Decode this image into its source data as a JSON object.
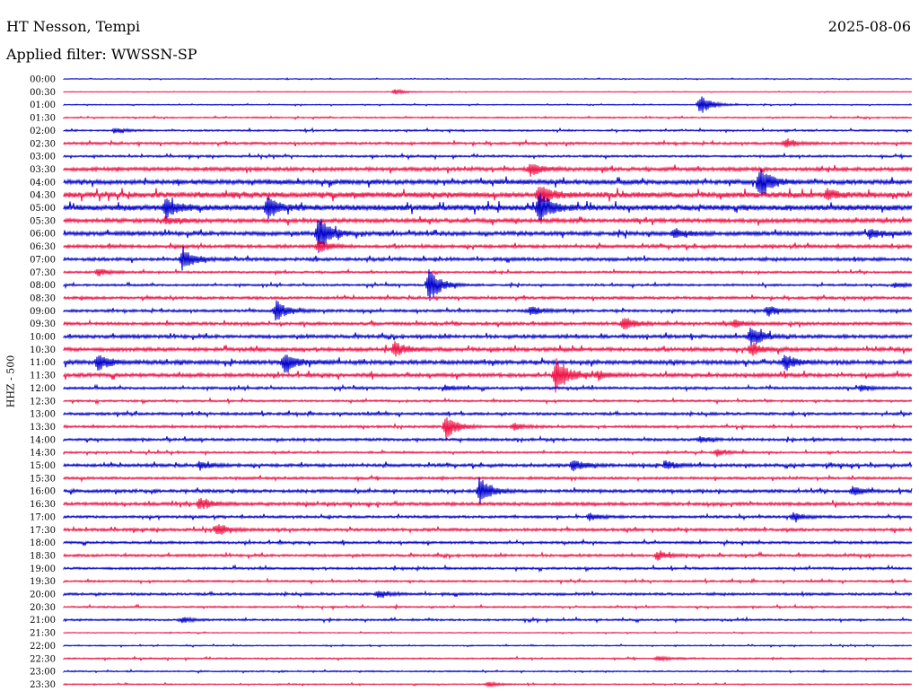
{
  "header": {
    "station": "HT Nesson, Tempi",
    "date": "2025-08-06",
    "filter": "Applied filter: WWSSN-SP"
  },
  "chart_data": {
    "type": "line",
    "title": "HT Nesson, Tempi",
    "ylabel": "HHZ - 500",
    "colors": [
      "#0000cc",
      "#ee1144"
    ],
    "tick_labels": [
      "00:00",
      "00:30",
      "01:00",
      "01:30",
      "02:00",
      "02:30",
      "03:00",
      "03:30",
      "04:00",
      "04:30",
      "05:00",
      "05:30",
      "06:00",
      "06:30",
      "07:00",
      "07:30",
      "08:00",
      "08:30",
      "09:00",
      "09:30",
      "10:00",
      "10:30",
      "11:00",
      "11:30",
      "12:00",
      "12:30",
      "13:00",
      "13:30",
      "14:00",
      "14:30",
      "15:00",
      "15:30",
      "16:00",
      "16:30",
      "17:00",
      "17:30",
      "18:00",
      "18:30",
      "19:00",
      "19:30",
      "20:00",
      "20:30",
      "21:00",
      "21:30",
      "22:00",
      "22:30",
      "23:00",
      "23:30"
    ],
    "row_noise": [
      0.4,
      0.3,
      0.5,
      0.7,
      0.9,
      1.3,
      1.1,
      2.0,
      2.4,
      3.0,
      3.0,
      2.2,
      2.2,
      1.7,
      1.7,
      1.1,
      1.1,
      1.4,
      1.4,
      1.6,
      1.8,
      2.0,
      2.2,
      2.0,
      1.3,
      1.1,
      1.4,
      1.3,
      1.4,
      1.0,
      1.6,
      1.3,
      1.6,
      1.7,
      1.3,
      1.5,
      1.3,
      1.3,
      1.2,
      1.0,
      1.3,
      0.9,
      1.0,
      0.5,
      0.6,
      0.8,
      0.7,
      0.6
    ],
    "events": [
      {
        "row": 1,
        "x": 0.39,
        "amp": 3
      },
      {
        "row": 2,
        "x": 0.75,
        "amp": 12
      },
      {
        "row": 4,
        "x": 0.06,
        "amp": 3
      },
      {
        "row": 5,
        "x": 0.85,
        "amp": 5
      },
      {
        "row": 7,
        "x": 0.55,
        "amp": 8
      },
      {
        "row": 8,
        "x": 0.82,
        "amp": 20
      },
      {
        "row": 9,
        "x": 0.56,
        "amp": 12
      },
      {
        "row": 9,
        "x": 0.9,
        "amp": 6
      },
      {
        "row": 10,
        "x": 0.12,
        "amp": 12
      },
      {
        "row": 10,
        "x": 0.24,
        "amp": 14
      },
      {
        "row": 10,
        "x": 0.56,
        "amp": 20
      },
      {
        "row": 11,
        "x": 0.12,
        "amp": 4
      },
      {
        "row": 12,
        "x": 0.3,
        "amp": 22
      },
      {
        "row": 12,
        "x": 0.72,
        "amp": 5
      },
      {
        "row": 12,
        "x": 0.95,
        "amp": 5
      },
      {
        "row": 13,
        "x": 0.3,
        "amp": 8
      },
      {
        "row": 14,
        "x": 0.14,
        "amp": 14
      },
      {
        "row": 15,
        "x": 0.04,
        "amp": 5
      },
      {
        "row": 16,
        "x": 0.43,
        "amp": 22
      },
      {
        "row": 16,
        "x": 0.98,
        "amp": 3
      },
      {
        "row": 18,
        "x": 0.25,
        "amp": 12
      },
      {
        "row": 18,
        "x": 0.55,
        "amp": 6
      },
      {
        "row": 18,
        "x": 0.83,
        "amp": 6
      },
      {
        "row": 19,
        "x": 0.66,
        "amp": 8
      },
      {
        "row": 19,
        "x": 0.79,
        "amp": 5
      },
      {
        "row": 20,
        "x": 0.81,
        "amp": 14
      },
      {
        "row": 21,
        "x": 0.39,
        "amp": 9
      },
      {
        "row": 21,
        "x": 0.81,
        "amp": 8
      },
      {
        "row": 22,
        "x": 0.04,
        "amp": 10
      },
      {
        "row": 22,
        "x": 0.26,
        "amp": 12
      },
      {
        "row": 22,
        "x": 0.85,
        "amp": 10
      },
      {
        "row": 23,
        "x": 0.58,
        "amp": 24
      },
      {
        "row": 23,
        "x": 0.63,
        "amp": 5
      },
      {
        "row": 24,
        "x": 0.45,
        "amp": 3
      },
      {
        "row": 24,
        "x": 0.94,
        "amp": 3
      },
      {
        "row": 27,
        "x": 0.45,
        "amp": 16
      },
      {
        "row": 27,
        "x": 0.53,
        "amp": 4
      },
      {
        "row": 28,
        "x": 0.75,
        "amp": 3
      },
      {
        "row": 29,
        "x": 0.77,
        "amp": 4
      },
      {
        "row": 30,
        "x": 0.16,
        "amp": 5
      },
      {
        "row": 30,
        "x": 0.6,
        "amp": 7
      },
      {
        "row": 30,
        "x": 0.71,
        "amp": 5
      },
      {
        "row": 32,
        "x": 0.49,
        "amp": 18
      },
      {
        "row": 32,
        "x": 0.93,
        "amp": 5
      },
      {
        "row": 33,
        "x": 0.16,
        "amp": 7
      },
      {
        "row": 34,
        "x": 0.62,
        "amp": 4
      },
      {
        "row": 34,
        "x": 0.86,
        "amp": 5
      },
      {
        "row": 35,
        "x": 0.18,
        "amp": 7
      },
      {
        "row": 37,
        "x": 0.7,
        "amp": 5
      },
      {
        "row": 40,
        "x": 0.37,
        "amp": 4
      },
      {
        "row": 42,
        "x": 0.14,
        "amp": 3
      },
      {
        "row": 45,
        "x": 0.7,
        "amp": 3
      },
      {
        "row": 47,
        "x": 0.5,
        "amp": 3
      }
    ]
  }
}
